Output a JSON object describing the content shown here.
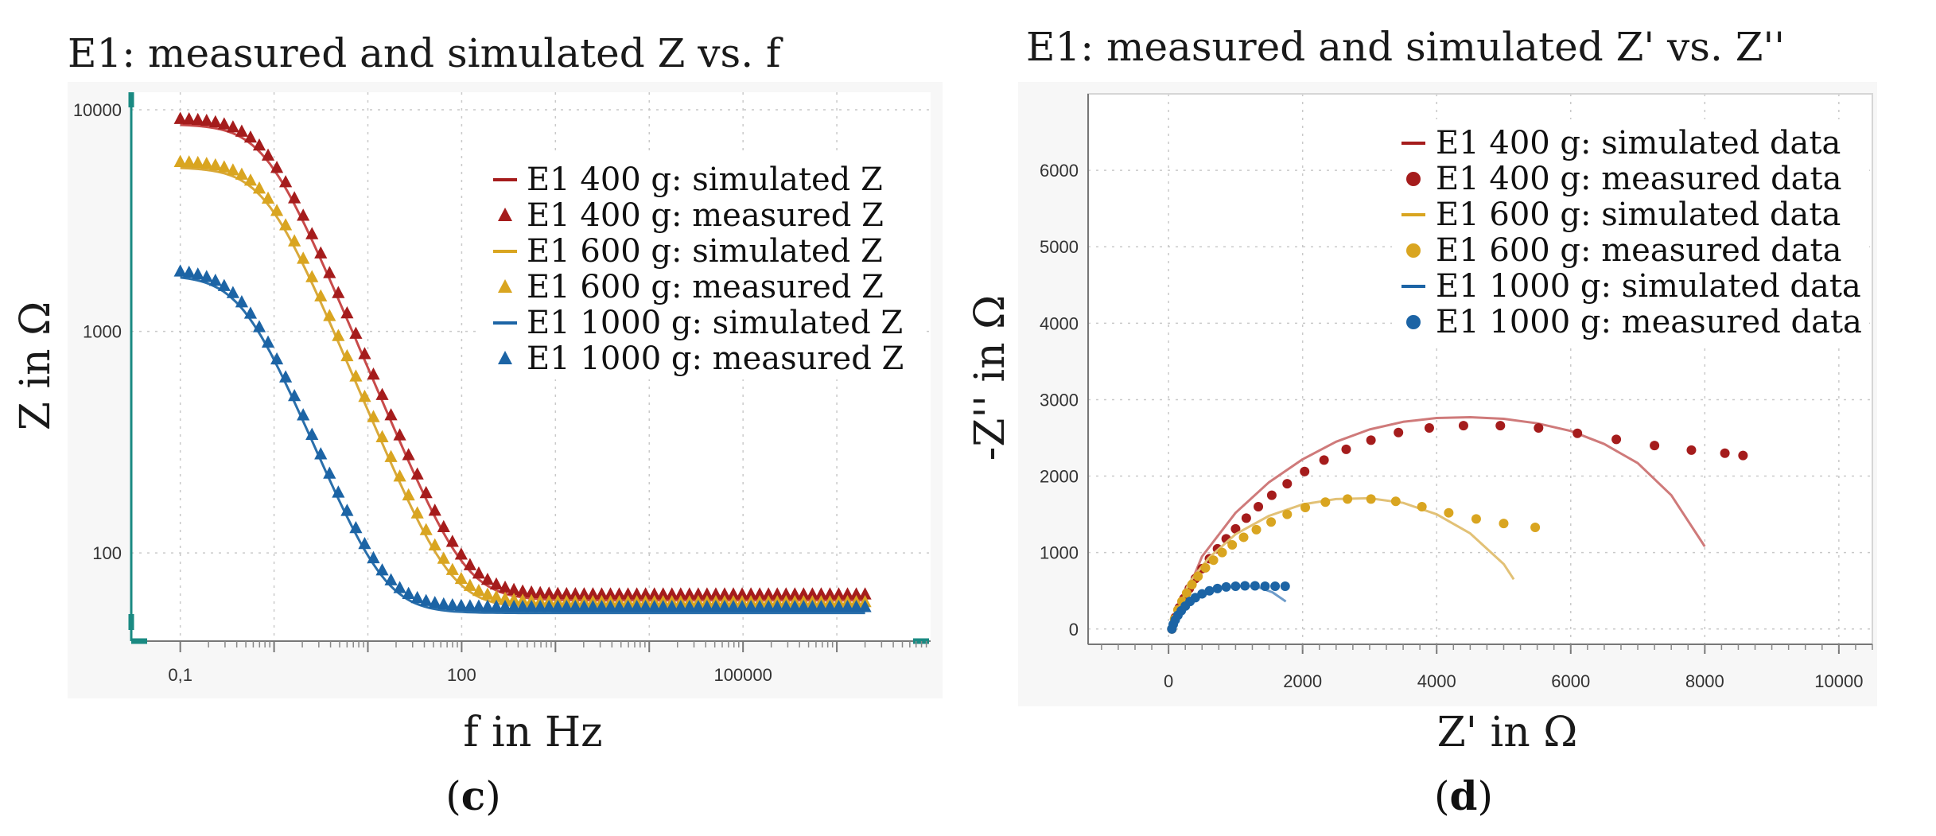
{
  "chart_data": [
    {
      "panel": "(c)",
      "type": "line",
      "title": "E1: measured and simulated Z vs. f",
      "xlabel": "f in Hz",
      "ylabel": "Z in Ω",
      "xscale": "log",
      "yscale": "log",
      "xlim": [
        0.03,
        10000000
      ],
      "ylim": [
        40,
        12000
      ],
      "xticks": [
        "0,1",
        "100",
        "100000"
      ],
      "yticks": [
        "100",
        "1000",
        "10000"
      ],
      "grid": true,
      "legend_position": "top-right",
      "legend": [
        {
          "label": "E1 400 g: simulated Z",
          "marker": "line",
          "color": "#a51c1c"
        },
        {
          "label": "E1 400 g: measured Z",
          "marker": "triangle",
          "color": "#a51c1c"
        },
        {
          "label": "E1 600 g: simulated Z",
          "marker": "line",
          "color": "#d9a520"
        },
        {
          "label": "E1 600 g: measured Z",
          "marker": "triangle",
          "color": "#d9a520"
        },
        {
          "label": "E1 1000 g: simulated Z",
          "marker": "line",
          "color": "#1c64a5"
        },
        {
          "label": "E1 1000 g: measured Z",
          "marker": "triangle",
          "color": "#1c64a5"
        }
      ],
      "series": [
        {
          "name": "E1 400 g",
          "color": "#a51c1c",
          "sim_color": "#c84a4a",
          "R0": 65,
          "R1": 9100,
          "tau": 0.2
        },
        {
          "name": "E1 600 g",
          "color": "#d9a520",
          "sim_color": "#d9a93a",
          "R0": 60,
          "R1": 5800,
          "tau": 0.2
        },
        {
          "name": "E1 1000 g",
          "color": "#1c64a5",
          "sim_color": "#2a6fab",
          "R0": 57,
          "R1": 1850,
          "tau": 0.35
        }
      ],
      "freq_range": [
        0.1,
        2000000
      ]
    },
    {
      "panel": "(d)",
      "type": "scatter",
      "title": "E1: measured and simulated Z' vs. Z''",
      "xlabel": "Z' in Ω",
      "ylabel": "-Z'' in Ω",
      "xlim": [
        -1200,
        10500
      ],
      "ylim": [
        -200,
        7000
      ],
      "xticks": [
        "0",
        "2000",
        "4000",
        "6000",
        "8000",
        "10000"
      ],
      "yticks": [
        "0",
        "1000",
        "2000",
        "3000",
        "4000",
        "5000",
        "6000"
      ],
      "grid": true,
      "legend_position": "top-right",
      "legend": [
        {
          "label": "E1 400 g: simulated data",
          "marker": "line",
          "color": "#a51c1c"
        },
        {
          "label": "E1 400 g: measured data",
          "marker": "dot",
          "color": "#a51c1c"
        },
        {
          "label": "E1 600 g: simulated data",
          "marker": "line",
          "color": "#d9a520"
        },
        {
          "label": "E1 600 g: measured data",
          "marker": "dot",
          "color": "#d9a520"
        },
        {
          "label": "E1 1000 g: simulated data",
          "marker": "line",
          "color": "#1c64a5"
        },
        {
          "label": "E1 1000 g: measured data",
          "marker": "dot",
          "color": "#1c64a5"
        }
      ],
      "series": [
        {
          "name": "E1 400 g",
          "color": "#a51c1c",
          "sim_color": "#cf7a7a",
          "simulated": [
            [
              50,
              0
            ],
            [
              500,
              950
            ],
            [
              1000,
              1520
            ],
            [
              1500,
              1920
            ],
            [
              2000,
              2220
            ],
            [
              2500,
              2450
            ],
            [
              3000,
              2610
            ],
            [
              3500,
              2710
            ],
            [
              4000,
              2760
            ],
            [
              4500,
              2770
            ],
            [
              5000,
              2750
            ],
            [
              5500,
              2690
            ],
            [
              6000,
              2590
            ],
            [
              6500,
              2420
            ],
            [
              7000,
              2170
            ],
            [
              7500,
              1750
            ],
            [
              8000,
              1080
            ]
          ],
          "measured": [
            [
              50,
              0
            ],
            [
              100,
              150
            ],
            [
              160,
              280
            ],
            [
              230,
              400
            ],
            [
              310,
              530
            ],
            [
              400,
              660
            ],
            [
              500,
              790
            ],
            [
              610,
              920
            ],
            [
              730,
              1050
            ],
            [
              860,
              1180
            ],
            [
              1000,
              1310
            ],
            [
              1160,
              1450
            ],
            [
              1340,
              1600
            ],
            [
              1540,
              1750
            ],
            [
              1770,
              1900
            ],
            [
              2030,
              2060
            ],
            [
              2320,
              2210
            ],
            [
              2650,
              2350
            ],
            [
              3020,
              2470
            ],
            [
              3430,
              2570
            ],
            [
              3890,
              2630
            ],
            [
              4400,
              2660
            ],
            [
              4950,
              2660
            ],
            [
              5520,
              2630
            ],
            [
              6100,
              2560
            ],
            [
              6680,
              2480
            ],
            [
              7250,
              2400
            ],
            [
              7800,
              2340
            ],
            [
              8300,
              2300
            ],
            [
              8570,
              2270
            ]
          ]
        },
        {
          "name": "E1 600 g",
          "color": "#d9a520",
          "sim_color": "#e2c176",
          "simulated": [
            [
              50,
              0
            ],
            [
              300,
              600
            ],
            [
              600,
              930
            ],
            [
              1000,
              1240
            ],
            [
              1500,
              1480
            ],
            [
              2000,
              1630
            ],
            [
              2500,
              1700
            ],
            [
              3000,
              1710
            ],
            [
              3500,
              1650
            ],
            [
              4000,
              1500
            ],
            [
              4500,
              1250
            ],
            [
              5000,
              850
            ],
            [
              5150,
              650
            ]
          ],
          "measured": [
            [
              50,
              0
            ],
            [
              90,
              130
            ],
            [
              140,
              250
            ],
            [
              200,
              360
            ],
            [
              270,
              470
            ],
            [
              350,
              580
            ],
            [
              440,
              690
            ],
            [
              550,
              800
            ],
            [
              670,
              900
            ],
            [
              800,
              1000
            ],
            [
              950,
              1100
            ],
            [
              1120,
              1200
            ],
            [
              1310,
              1300
            ],
            [
              1530,
              1400
            ],
            [
              1770,
              1500
            ],
            [
              2040,
              1590
            ],
            [
              2340,
              1660
            ],
            [
              2670,
              1700
            ],
            [
              3020,
              1700
            ],
            [
              3390,
              1670
            ],
            [
              3780,
              1600
            ],
            [
              4180,
              1520
            ],
            [
              4590,
              1440
            ],
            [
              5000,
              1380
            ],
            [
              5470,
              1330
            ]
          ]
        },
        {
          "name": "E1 1000 g",
          "color": "#1c64a5",
          "sim_color": "#6d9bc9",
          "simulated": [
            [
              50,
              0
            ],
            [
              200,
              280
            ],
            [
              400,
              420
            ],
            [
              700,
              520
            ],
            [
              1000,
              560
            ],
            [
              1300,
              560
            ],
            [
              1550,
              480
            ],
            [
              1750,
              360
            ]
          ],
          "measured": [
            [
              50,
              0
            ],
            [
              70,
              60
            ],
            [
              100,
              120
            ],
            [
              140,
              180
            ],
            [
              190,
              240
            ],
            [
              250,
              300
            ],
            [
              320,
              360
            ],
            [
              400,
              410
            ],
            [
              500,
              460
            ],
            [
              610,
              500
            ],
            [
              730,
              530
            ],
            [
              860,
              550
            ],
            [
              1000,
              560
            ],
            [
              1140,
              565
            ],
            [
              1290,
              565
            ],
            [
              1440,
              560
            ],
            [
              1590,
              560
            ],
            [
              1740,
              560
            ]
          ]
        }
      ]
    }
  ],
  "panel_c_label": "(c)",
  "panel_d_label": "(d)"
}
